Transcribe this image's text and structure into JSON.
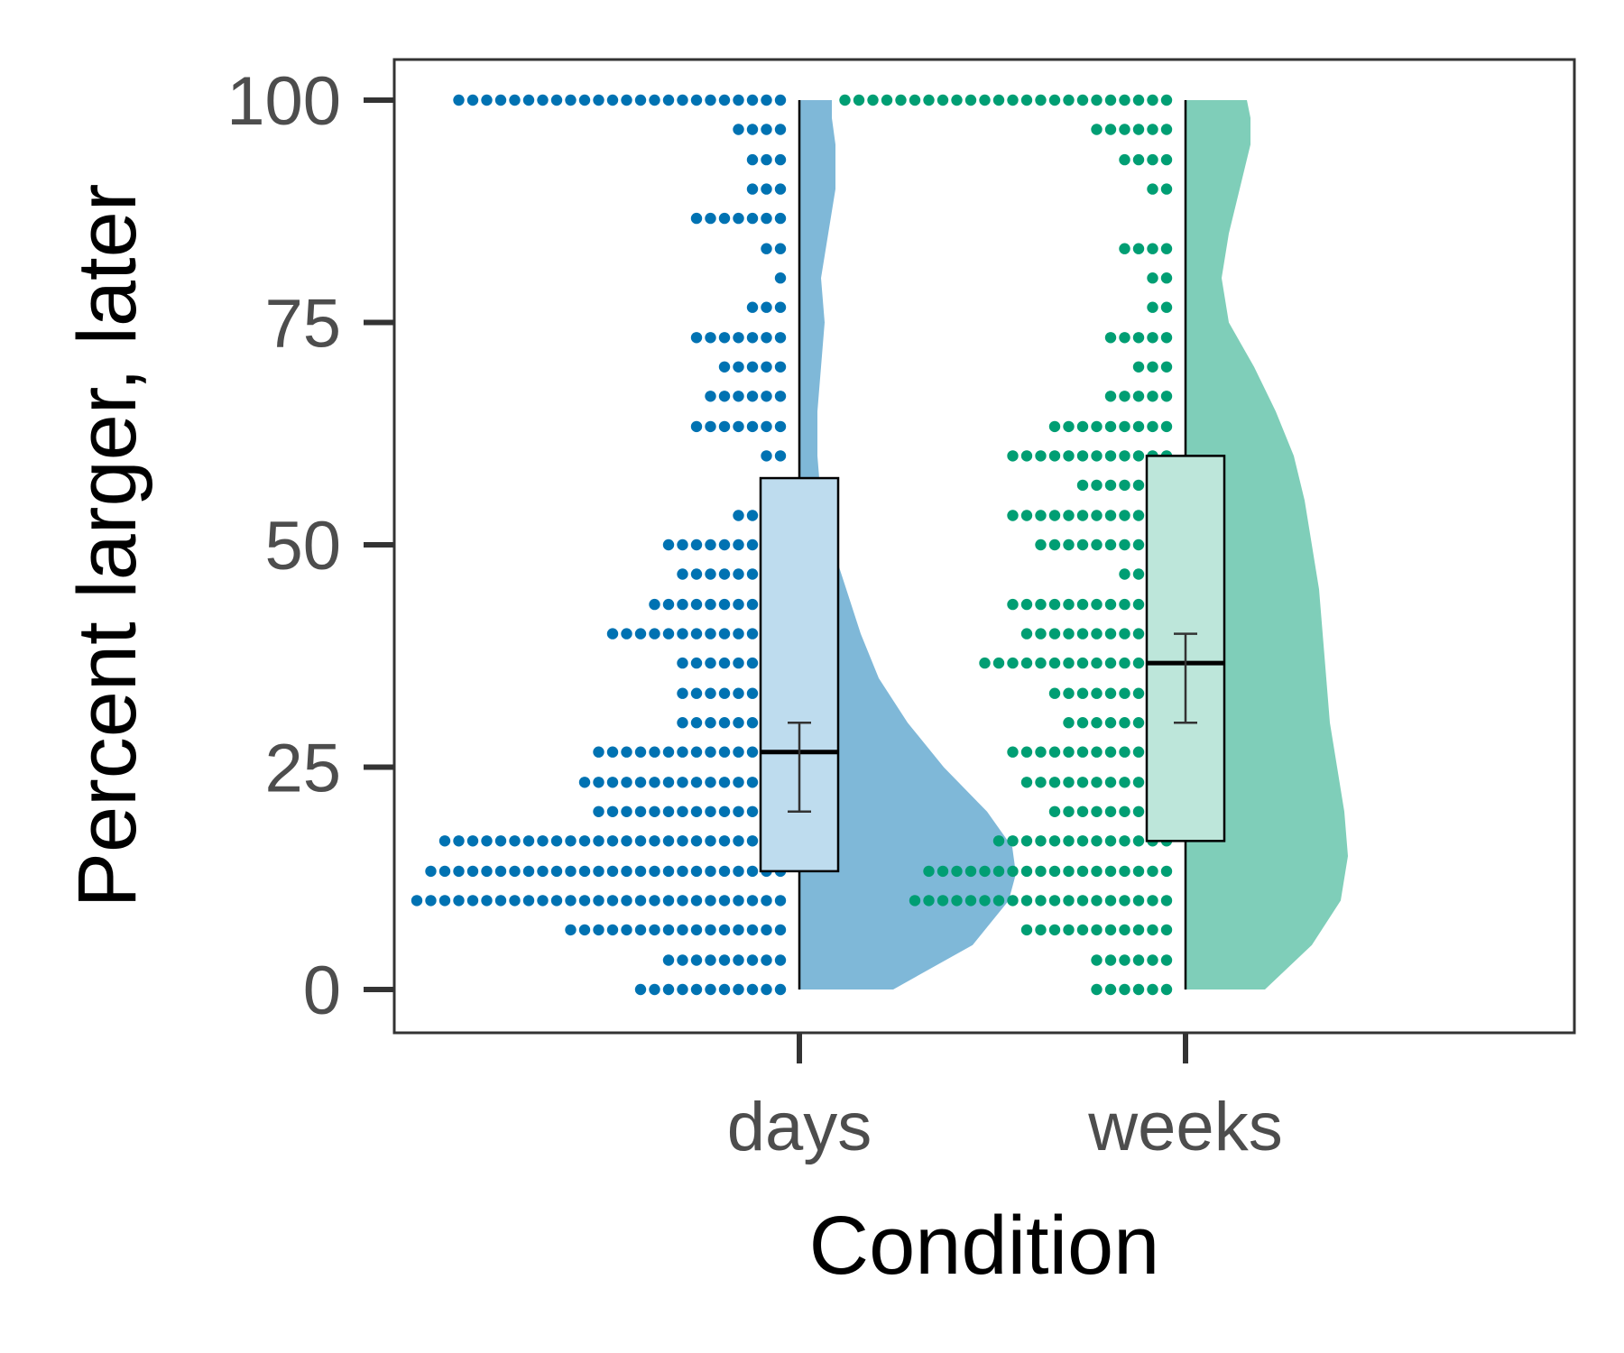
{
  "chart_data": {
    "type": "raincloud",
    "xlabel": "Condition",
    "ylabel": "Percent larger, later",
    "ylim": [
      -4.5,
      105
    ],
    "yticks": [
      0,
      25,
      50,
      75,
      100
    ],
    "categories": [
      "days",
      "weeks"
    ],
    "grid": false,
    "legend": "none",
    "series": [
      {
        "category": "days",
        "color": "#0072b2",
        "fill_light": "#bedcee",
        "box": {
          "q1": 13.3,
          "median": 26.7,
          "q3": 57.5,
          "whisker_low": 0,
          "whisker_high": 100
        },
        "mean_ci": {
          "low": 20,
          "high": 30
        },
        "density": [
          [
            0,
            0.26
          ],
          [
            5,
            0.48
          ],
          [
            10,
            0.58
          ],
          [
            13,
            0.6
          ],
          [
            16,
            0.59
          ],
          [
            20,
            0.52
          ],
          [
            25,
            0.4
          ],
          [
            30,
            0.3
          ],
          [
            35,
            0.22
          ],
          [
            40,
            0.17
          ],
          [
            45,
            0.13
          ],
          [
            50,
            0.09
          ],
          [
            55,
            0.06
          ],
          [
            60,
            0.05
          ],
          [
            65,
            0.05
          ],
          [
            70,
            0.06
          ],
          [
            75,
            0.07
          ],
          [
            80,
            0.06
          ],
          [
            85,
            0.08
          ],
          [
            90,
            0.1
          ],
          [
            95,
            0.1
          ],
          [
            98,
            0.09
          ],
          [
            100,
            0.09
          ]
        ],
        "dots": [
          {
            "y": 0,
            "n": 11
          },
          {
            "y": 3.3,
            "n": 9
          },
          {
            "y": 6.7,
            "n": 16
          },
          {
            "y": 10,
            "n": 27
          },
          {
            "y": 13.3,
            "n": 26
          },
          {
            "y": 16.7,
            "n": 25
          },
          {
            "y": 20,
            "n": 14
          },
          {
            "y": 23.3,
            "n": 15
          },
          {
            "y": 26.7,
            "n": 14
          },
          {
            "y": 30,
            "n": 8
          },
          {
            "y": 33.3,
            "n": 8
          },
          {
            "y": 36.7,
            "n": 8
          },
          {
            "y": 40,
            "n": 13
          },
          {
            "y": 43.3,
            "n": 10
          },
          {
            "y": 46.7,
            "n": 8
          },
          {
            "y": 50,
            "n": 9
          },
          {
            "y": 53.3,
            "n": 4
          },
          {
            "y": 56.7,
            "n": 2
          },
          {
            "y": 60,
            "n": 2
          },
          {
            "y": 63.3,
            "n": 7
          },
          {
            "y": 66.7,
            "n": 6
          },
          {
            "y": 70,
            "n": 5
          },
          {
            "y": 73.3,
            "n": 7
          },
          {
            "y": 76.7,
            "n": 3
          },
          {
            "y": 80,
            "n": 1
          },
          {
            "y": 83.3,
            "n": 2
          },
          {
            "y": 86.7,
            "n": 7
          },
          {
            "y": 90,
            "n": 3
          },
          {
            "y": 93.3,
            "n": 3
          },
          {
            "y": 96.7,
            "n": 4
          },
          {
            "y": 100,
            "n": 24
          }
        ]
      },
      {
        "category": "weeks",
        "color": "#009e73",
        "fill_light": "#bde6da",
        "box": {
          "q1": 16.7,
          "median": 36.7,
          "q3": 60,
          "whisker_low": 0,
          "whisker_high": 100
        },
        "mean_ci": {
          "low": 30,
          "high": 40
        },
        "density": [
          [
            0,
            0.22
          ],
          [
            5,
            0.35
          ],
          [
            10,
            0.43
          ],
          [
            15,
            0.45
          ],
          [
            20,
            0.44
          ],
          [
            25,
            0.42
          ],
          [
            30,
            0.4
          ],
          [
            35,
            0.39
          ],
          [
            40,
            0.38
          ],
          [
            45,
            0.37
          ],
          [
            50,
            0.35
          ],
          [
            55,
            0.33
          ],
          [
            60,
            0.3
          ],
          [
            65,
            0.25
          ],
          [
            70,
            0.19
          ],
          [
            75,
            0.12
          ],
          [
            80,
            0.1
          ],
          [
            85,
            0.12
          ],
          [
            90,
            0.15
          ],
          [
            95,
            0.18
          ],
          [
            98,
            0.18
          ],
          [
            100,
            0.17
          ]
        ],
        "dots": [
          {
            "y": 0,
            "n": 6
          },
          {
            "y": 3.3,
            "n": 6
          },
          {
            "y": 6.7,
            "n": 11
          },
          {
            "y": 10,
            "n": 19
          },
          {
            "y": 13.3,
            "n": 18
          },
          {
            "y": 16.7,
            "n": 13
          },
          {
            "y": 20,
            "n": 9
          },
          {
            "y": 23.3,
            "n": 11
          },
          {
            "y": 26.7,
            "n": 12
          },
          {
            "y": 30,
            "n": 8
          },
          {
            "y": 33.3,
            "n": 9
          },
          {
            "y": 36.7,
            "n": 14
          },
          {
            "y": 40,
            "n": 11
          },
          {
            "y": 43.3,
            "n": 12
          },
          {
            "y": 46.7,
            "n": 4
          },
          {
            "y": 50,
            "n": 10
          },
          {
            "y": 53.3,
            "n": 12
          },
          {
            "y": 56.7,
            "n": 7
          },
          {
            "y": 60,
            "n": 12
          },
          {
            "y": 63.3,
            "n": 9
          },
          {
            "y": 66.7,
            "n": 5
          },
          {
            "y": 70,
            "n": 3
          },
          {
            "y": 73.3,
            "n": 5
          },
          {
            "y": 76.7,
            "n": 2
          },
          {
            "y": 80,
            "n": 2
          },
          {
            "y": 83.3,
            "n": 4
          },
          {
            "y": 90,
            "n": 2
          },
          {
            "y": 93.3,
            "n": 4
          },
          {
            "y": 96.7,
            "n": 6
          },
          {
            "y": 100,
            "n": 24
          }
        ]
      }
    ]
  }
}
